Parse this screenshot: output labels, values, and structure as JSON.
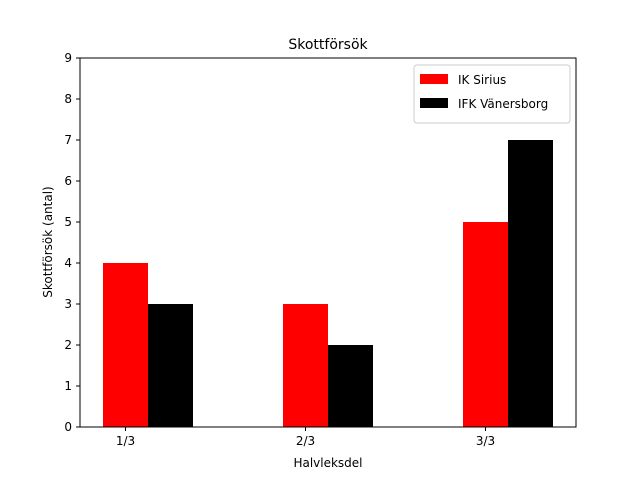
{
  "chart_data": {
    "type": "bar",
    "title": "Skottförsök",
    "xlabel": "Halvleksdel",
    "ylabel": "Skottförsök (antal)",
    "categories": [
      "1/3",
      "2/3",
      "3/3"
    ],
    "series": [
      {
        "name": "IK Sirius",
        "color": "#ff0000",
        "values": [
          4,
          3,
          5
        ]
      },
      {
        "name": "IFK Vänersborg",
        "color": "#000000",
        "values": [
          3,
          2,
          7
        ]
      }
    ],
    "ylim": [
      0,
      9
    ],
    "yticks": [
      0,
      1,
      2,
      3,
      4,
      5,
      6,
      7,
      8,
      9
    ],
    "grid": false,
    "legend_position": "top-right"
  }
}
